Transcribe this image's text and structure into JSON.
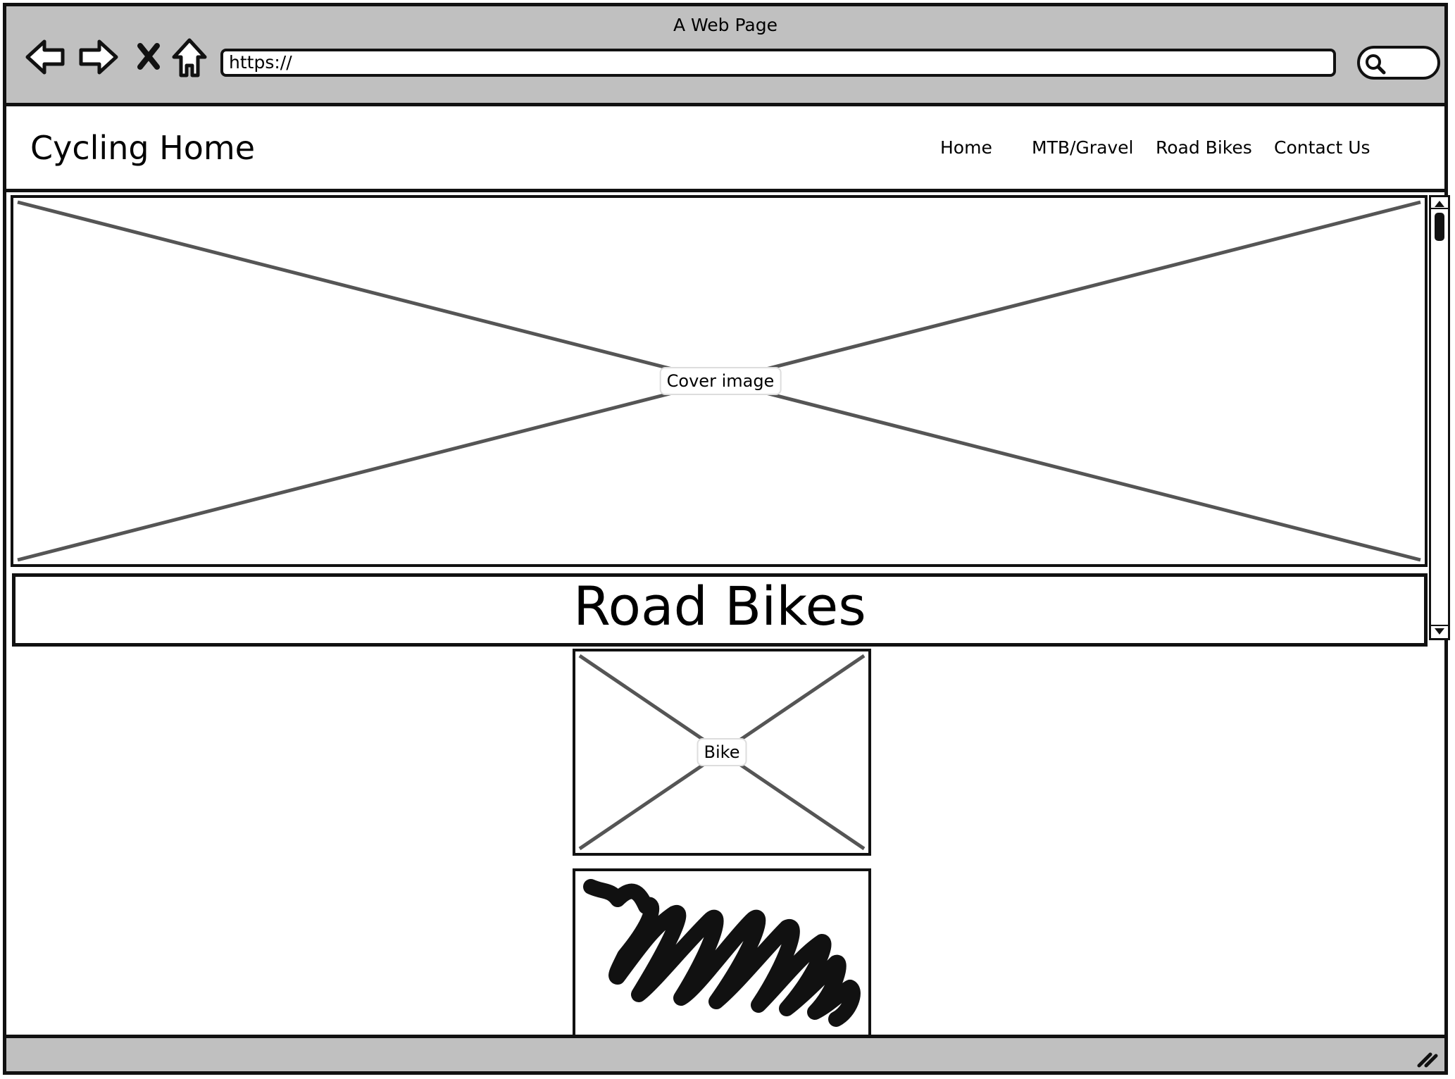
{
  "window": {
    "title": "A Web Page",
    "url": "https://"
  },
  "header": {
    "site_title": "Cycling Home",
    "nav": [
      {
        "label": "Home"
      },
      {
        "label": "MTB/Gravel"
      },
      {
        "label": "Road Bikes"
      },
      {
        "label": "Contact Us"
      }
    ]
  },
  "main": {
    "cover_label": "Cover image",
    "heading": "Road Bikes",
    "bike_label": "Bike"
  },
  "icons": [
    "back-arrow-icon",
    "forward-arrow-icon",
    "stop-icon",
    "home-icon",
    "search-icon",
    "resize-grip-icon"
  ],
  "colors": {
    "chrome": "#c0c0c0",
    "ink": "#111111",
    "placeholder_lines": "#555555"
  }
}
